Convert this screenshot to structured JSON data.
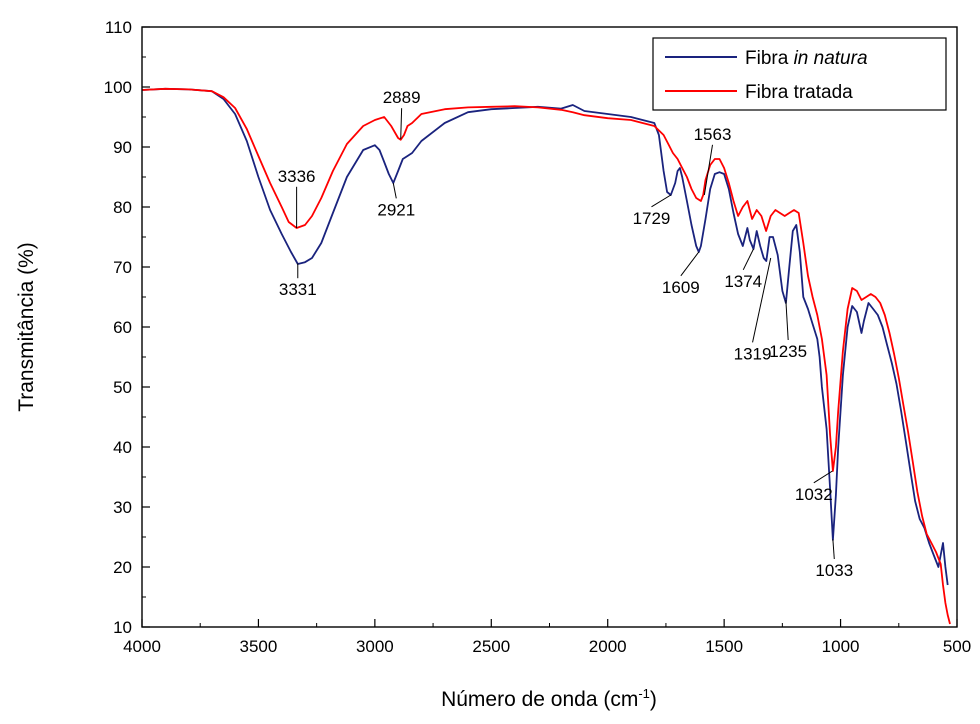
{
  "chart_data": {
    "type": "line",
    "title": "",
    "xlabel": "Número de onda (cm",
    "xlabel_sup": "-1",
    "xlabel_end": ")",
    "ylabel": "Transmitância (%)",
    "xlim": [
      4000,
      500
    ],
    "ylim": [
      10,
      110
    ],
    "x_reversed": true,
    "grid": false,
    "legend_position": "top-right",
    "xticks": [
      "4000",
      "3500",
      "3000",
      "2500",
      "2000",
      "1500",
      "1000",
      "500"
    ],
    "yticks": [
      "10",
      "20",
      "30",
      "40",
      "50",
      "60",
      "70",
      "80",
      "90",
      "100",
      "110"
    ],
    "series": [
      {
        "name_plain": "Fibra ",
        "name_italic": "in natura",
        "color": "#1a237e",
        "x": [
          4000,
          3900,
          3800,
          3700,
          3650,
          3600,
          3550,
          3500,
          3450,
          3400,
          3360,
          3331,
          3300,
          3270,
          3230,
          3180,
          3120,
          3050,
          3000,
          2980,
          2960,
          2940,
          2921,
          2900,
          2880,
          2860,
          2840,
          2800,
          2700,
          2600,
          2500,
          2400,
          2300,
          2200,
          2150,
          2100,
          2000,
          1900,
          1800,
          1780,
          1760,
          1745,
          1729,
          1710,
          1700,
          1690,
          1680,
          1660,
          1640,
          1620,
          1609,
          1600,
          1580,
          1560,
          1540,
          1520,
          1500,
          1480,
          1460,
          1440,
          1420,
          1400,
          1390,
          1374,
          1360,
          1345,
          1330,
          1319,
          1305,
          1290,
          1270,
          1250,
          1235,
          1220,
          1205,
          1190,
          1175,
          1160,
          1140,
          1120,
          1100,
          1090,
          1080,
          1060,
          1045,
          1033,
          1020,
          1010,
          990,
          970,
          950,
          930,
          910,
          900,
          880,
          860,
          840,
          820,
          800,
          780,
          760,
          740,
          720,
          700,
          680,
          660,
          640,
          620,
          600,
          580,
          560,
          550,
          540
        ],
        "y": [
          99.5,
          99.7,
          99.6,
          99.3,
          98.0,
          95.5,
          91.0,
          85.0,
          79.5,
          75.5,
          72.5,
          70.5,
          70.8,
          71.5,
          74.0,
          79.0,
          85.0,
          89.5,
          90.3,
          89.5,
          87.5,
          85.5,
          84.0,
          86.0,
          88.0,
          88.5,
          89.0,
          91.0,
          94.0,
          95.8,
          96.3,
          96.5,
          96.7,
          96.4,
          97.0,
          96.0,
          95.5,
          95.0,
          94.0,
          92.0,
          86.0,
          82.5,
          82.0,
          84.0,
          86.0,
          86.5,
          85.0,
          81.0,
          77.0,
          73.5,
          72.5,
          73.5,
          78.0,
          83.0,
          85.5,
          85.8,
          85.5,
          83.0,
          79.0,
          75.5,
          73.5,
          76.5,
          74.5,
          73.0,
          76.0,
          73.5,
          71.5,
          71.0,
          75.0,
          75.0,
          72.0,
          66.0,
          64.0,
          70.0,
          76.0,
          77.0,
          72.5,
          65.0,
          63.0,
          60.5,
          58.0,
          55.0,
          50.0,
          43.0,
          33.0,
          24.5,
          32.0,
          40.0,
          52.0,
          60.0,
          63.5,
          62.5,
          59.0,
          61.0,
          64.0,
          63.0,
          62.0,
          60.0,
          57.0,
          54.0,
          50.5,
          46.0,
          41.0,
          36.0,
          31.0,
          28.0,
          26.5,
          24.0,
          22.0,
          20.0,
          24.0,
          20.0,
          17.0
        ]
      },
      {
        "name_plain": "Fibra tratada",
        "name_italic": "",
        "color": "#ff0000",
        "x": [
          4000,
          3900,
          3800,
          3700,
          3650,
          3600,
          3550,
          3500,
          3450,
          3400,
          3370,
          3336,
          3300,
          3270,
          3230,
          3180,
          3120,
          3050,
          3000,
          2960,
          2930,
          2900,
          2889,
          2875,
          2860,
          2840,
          2800,
          2700,
          2600,
          2500,
          2400,
          2300,
          2200,
          2150,
          2100,
          2000,
          1900,
          1800,
          1760,
          1740,
          1720,
          1700,
          1680,
          1660,
          1640,
          1620,
          1600,
          1590,
          1580,
          1560,
          1540,
          1520,
          1500,
          1480,
          1460,
          1440,
          1420,
          1400,
          1380,
          1360,
          1340,
          1320,
          1300,
          1280,
          1260,
          1240,
          1220,
          1200,
          1180,
          1160,
          1140,
          1120,
          1100,
          1080,
          1060,
          1045,
          1033,
          1020,
          1010,
          990,
          970,
          950,
          930,
          910,
          890,
          870,
          850,
          830,
          810,
          790,
          770,
          750,
          730,
          710,
          690,
          670,
          650,
          630,
          610,
          590,
          570,
          560,
          550,
          540,
          530
        ],
        "y": [
          99.5,
          99.7,
          99.6,
          99.3,
          98.3,
          96.5,
          93.0,
          88.5,
          84.0,
          80.0,
          77.5,
          76.5,
          77.0,
          78.5,
          81.5,
          86.0,
          90.5,
          93.5,
          94.5,
          95.0,
          93.5,
          91.5,
          91.2,
          92.0,
          93.5,
          94.0,
          95.5,
          96.3,
          96.6,
          96.7,
          96.8,
          96.6,
          96.2,
          95.8,
          95.3,
          94.8,
          94.5,
          93.5,
          92.0,
          90.5,
          89.0,
          88.0,
          86.5,
          85.0,
          83.0,
          81.5,
          81.0,
          82.0,
          84.5,
          87.0,
          88.0,
          88.0,
          86.5,
          84.0,
          81.0,
          78.5,
          80.0,
          81.0,
          78.0,
          79.5,
          78.5,
          76.0,
          78.5,
          79.5,
          79.0,
          78.5,
          79.0,
          79.5,
          79.0,
          74.0,
          68.5,
          65.0,
          62.0,
          58.0,
          52.0,
          42.0,
          36.0,
          40.0,
          46.0,
          56.0,
          63.0,
          66.5,
          66.0,
          64.5,
          65.0,
          65.5,
          65.0,
          64.0,
          62.0,
          59.0,
          55.5,
          51.5,
          47.0,
          42.5,
          37.5,
          32.5,
          28.5,
          25.5,
          24.0,
          22.5,
          20.5,
          17.0,
          14.0,
          12.0,
          10.5
        ]
      }
    ],
    "annotations": [
      {
        "label": "3336",
        "x": 3336,
        "y": 76.5,
        "tx": 3336,
        "ty": 84.2,
        "anchor": "middle"
      },
      {
        "label": "3331",
        "x": 3331,
        "y": 70.6,
        "tx": 3331,
        "ty": 65.3,
        "anchor": "middle"
      },
      {
        "label": "2889",
        "x": 2889,
        "y": 91.3,
        "tx": 2885,
        "ty": 97.3,
        "anchor": "middle"
      },
      {
        "label": "2921",
        "x": 2921,
        "y": 84.0,
        "tx": 2908,
        "ty": 78.6,
        "anchor": "middle"
      },
      {
        "label": "1563",
        "x": 1585,
        "y": 82.0,
        "tx": 1550,
        "ty": 91.2,
        "anchor": "middle"
      },
      {
        "label": "1729",
        "x": 1729,
        "y": 82.0,
        "tx": 1812,
        "ty": 77.2,
        "anchor": "middle"
      },
      {
        "label": "1609",
        "x": 1609,
        "y": 72.5,
        "tx": 1686,
        "ty": 65.7,
        "anchor": "middle"
      },
      {
        "label": "1374",
        "x": 1374,
        "y": 73.0,
        "tx": 1418,
        "ty": 66.7,
        "anchor": "middle"
      },
      {
        "label": "1319",
        "x": 1300,
        "y": 71.5,
        "tx": 1378,
        "ty": 54.6,
        "anchor": "middle"
      },
      {
        "label": "1235",
        "x": 1235,
        "y": 64.5,
        "tx": 1225,
        "ty": 55.0,
        "anchor": "middle"
      },
      {
        "label": "1032",
        "x": 1035,
        "y": 36.0,
        "tx": 1115,
        "ty": 31.2,
        "anchor": "middle"
      },
      {
        "label": "1033",
        "x": 1033,
        "y": 24.6,
        "tx": 1027,
        "ty": 18.5,
        "anchor": "middle"
      }
    ]
  }
}
